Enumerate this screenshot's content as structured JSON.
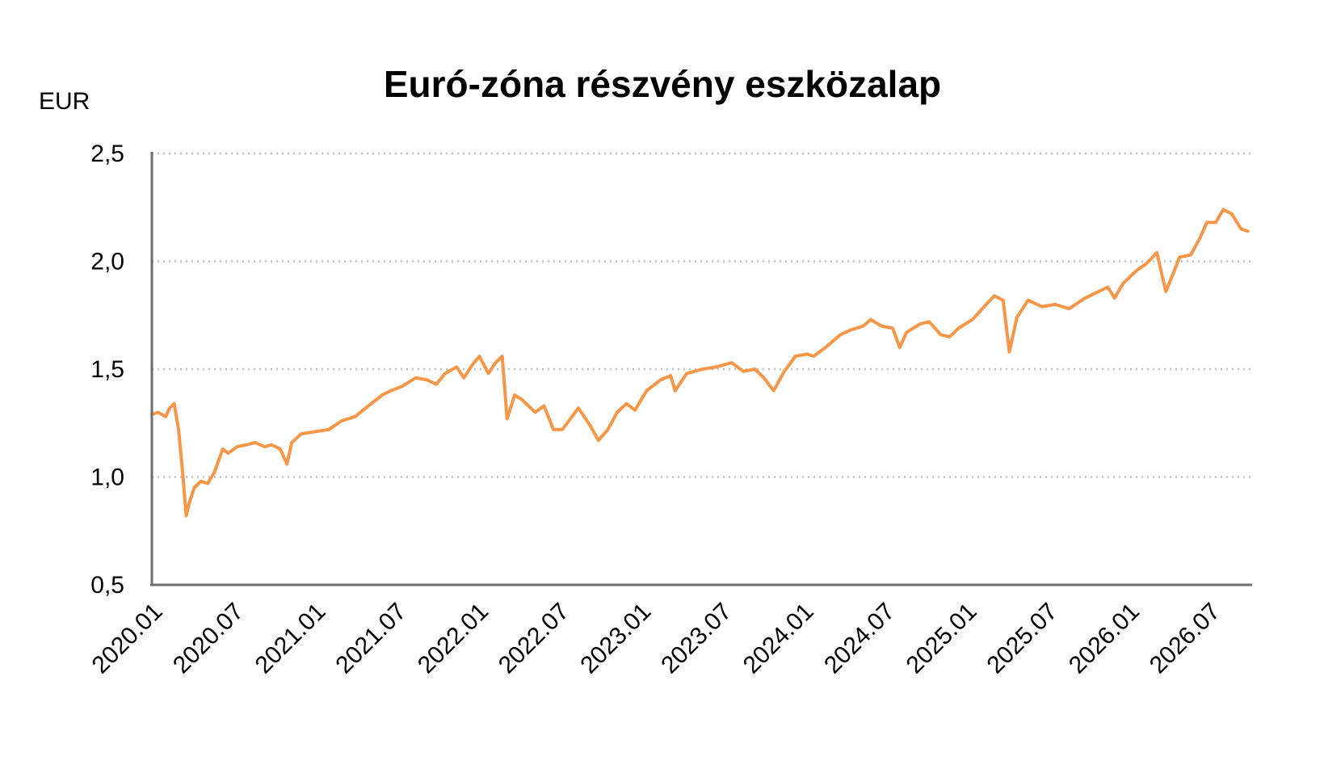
{
  "chart_data": {
    "type": "line",
    "title": "Euró-zóna részvény eszközalap",
    "ylabel": "EUR",
    "xlabel": "",
    "ylim": [
      0.5,
      2.5
    ],
    "xlim": [
      "2020-01",
      "2026-10"
    ],
    "y_ticks": [
      "0,5",
      "1,0",
      "1,5",
      "2,0",
      "2,5"
    ],
    "y_tick_values": [
      0.5,
      1.0,
      1.5,
      2.0,
      2.5
    ],
    "x_ticks": [
      "2020.01",
      "2020.07",
      "2021.01",
      "2021.07",
      "2022.01",
      "2022.07",
      "2023.01",
      "2023.07",
      "2024.01",
      "2024.07",
      "2025.01",
      "2025.07",
      "2026.01",
      "2026.07"
    ],
    "x_tick_dates": [
      "2020-01",
      "2020-07",
      "2021-01",
      "2021-07",
      "2022-01",
      "2022-07",
      "2023-01",
      "2023-07",
      "2024-01",
      "2024-07",
      "2025-01",
      "2025-07",
      "2026-01",
      "2026-07"
    ],
    "grid": "horizontal dotted",
    "series": [
      {
        "color": "#F79646",
        "points": [
          [
            "2020-01-01",
            1.29
          ],
          [
            "2020-01-15",
            1.3
          ],
          [
            "2020-02-01",
            1.28
          ],
          [
            "2020-02-10",
            1.32
          ],
          [
            "2020-02-20",
            1.34
          ],
          [
            "2020-03-01",
            1.22
          ],
          [
            "2020-03-10",
            1.02
          ],
          [
            "2020-03-18",
            0.82
          ],
          [
            "2020-03-25",
            0.88
          ],
          [
            "2020-04-05",
            0.95
          ],
          [
            "2020-04-20",
            0.98
          ],
          [
            "2020-05-05",
            0.97
          ],
          [
            "2020-05-20",
            1.02
          ],
          [
            "2020-06-08",
            1.13
          ],
          [
            "2020-06-20",
            1.11
          ],
          [
            "2020-07-10",
            1.14
          ],
          [
            "2020-08-01",
            1.15
          ],
          [
            "2020-08-20",
            1.16
          ],
          [
            "2020-09-10",
            1.14
          ],
          [
            "2020-09-25",
            1.15
          ],
          [
            "2020-10-15",
            1.13
          ],
          [
            "2020-10-30",
            1.06
          ],
          [
            "2020-11-10",
            1.16
          ],
          [
            "2020-12-01",
            1.2
          ],
          [
            "2021-01-01",
            1.21
          ],
          [
            "2021-02-01",
            1.22
          ],
          [
            "2021-03-01",
            1.26
          ],
          [
            "2021-04-01",
            1.28
          ],
          [
            "2021-05-01",
            1.33
          ],
          [
            "2021-06-01",
            1.38
          ],
          [
            "2021-06-20",
            1.4
          ],
          [
            "2021-07-15",
            1.42
          ],
          [
            "2021-08-15",
            1.46
          ],
          [
            "2021-09-10",
            1.45
          ],
          [
            "2021-09-30",
            1.43
          ],
          [
            "2021-10-20",
            1.48
          ],
          [
            "2021-11-15",
            1.51
          ],
          [
            "2021-12-01",
            1.46
          ],
          [
            "2021-12-20",
            1.52
          ],
          [
            "2022-01-05",
            1.56
          ],
          [
            "2022-01-25",
            1.48
          ],
          [
            "2022-02-10",
            1.53
          ],
          [
            "2022-02-25",
            1.56
          ],
          [
            "2022-03-08",
            1.27
          ],
          [
            "2022-03-25",
            1.38
          ],
          [
            "2022-04-10",
            1.36
          ],
          [
            "2022-05-10",
            1.3
          ],
          [
            "2022-05-30",
            1.33
          ],
          [
            "2022-06-20",
            1.22
          ],
          [
            "2022-07-10",
            1.22
          ],
          [
            "2022-08-15",
            1.32
          ],
          [
            "2022-09-10",
            1.24
          ],
          [
            "2022-09-29",
            1.17
          ],
          [
            "2022-10-20",
            1.22
          ],
          [
            "2022-11-10",
            1.3
          ],
          [
            "2022-12-01",
            1.34
          ],
          [
            "2022-12-20",
            1.31
          ],
          [
            "2023-01-15",
            1.4
          ],
          [
            "2023-02-15",
            1.45
          ],
          [
            "2023-03-10",
            1.47
          ],
          [
            "2023-03-20",
            1.4
          ],
          [
            "2023-04-15",
            1.48
          ],
          [
            "2023-05-20",
            1.5
          ],
          [
            "2023-06-20",
            1.51
          ],
          [
            "2023-07-25",
            1.53
          ],
          [
            "2023-08-20",
            1.49
          ],
          [
            "2023-09-15",
            1.5
          ],
          [
            "2023-10-05",
            1.46
          ],
          [
            "2023-10-27",
            1.4
          ],
          [
            "2023-11-20",
            1.49
          ],
          [
            "2023-12-15",
            1.56
          ],
          [
            "2024-01-10",
            1.57
          ],
          [
            "2024-01-25",
            1.56
          ],
          [
            "2024-02-20",
            1.6
          ],
          [
            "2024-03-25",
            1.66
          ],
          [
            "2024-04-15",
            1.68
          ],
          [
            "2024-05-15",
            1.7
          ],
          [
            "2024-06-01",
            1.73
          ],
          [
            "2024-06-25",
            1.7
          ],
          [
            "2024-07-20",
            1.69
          ],
          [
            "2024-08-05",
            1.6
          ],
          [
            "2024-08-20",
            1.67
          ],
          [
            "2024-09-20",
            1.71
          ],
          [
            "2024-10-10",
            1.72
          ],
          [
            "2024-11-05",
            1.66
          ],
          [
            "2024-11-25",
            1.65
          ],
          [
            "2024-12-15",
            1.69
          ],
          [
            "2025-01-15",
            1.73
          ],
          [
            "2025-02-15",
            1.8
          ],
          [
            "2025-03-05",
            1.84
          ],
          [
            "2025-03-25",
            1.82
          ],
          [
            "2025-04-08",
            1.58
          ],
          [
            "2025-04-25",
            1.74
          ],
          [
            "2025-05-20",
            1.82
          ],
          [
            "2025-06-20",
            1.79
          ],
          [
            "2025-07-20",
            1.8
          ],
          [
            "2025-08-20",
            1.78
          ],
          [
            "2025-09-25",
            1.83
          ],
          [
            "2025-10-25",
            1.86
          ],
          [
            "2025-11-15",
            1.88
          ],
          [
            "2025-11-30",
            1.83
          ],
          [
            "2025-12-20",
            1.9
          ],
          [
            "2026-01-20",
            1.96
          ],
          [
            "2026-02-10",
            1.99
          ],
          [
            "2026-03-05",
            2.04
          ],
          [
            "2026-03-25",
            1.86
          ],
          [
            "2026-04-10",
            1.94
          ],
          [
            "2026-04-25",
            2.02
          ],
          [
            "2026-05-20",
            2.03
          ],
          [
            "2026-06-10",
            2.11
          ],
          [
            "2026-06-25",
            2.18
          ],
          [
            "2026-07-15",
            2.18
          ],
          [
            "2026-08-01",
            2.24
          ],
          [
            "2026-08-20",
            2.22
          ],
          [
            "2026-09-10",
            2.15
          ],
          [
            "2026-09-25",
            2.14
          ]
        ]
      }
    ]
  }
}
